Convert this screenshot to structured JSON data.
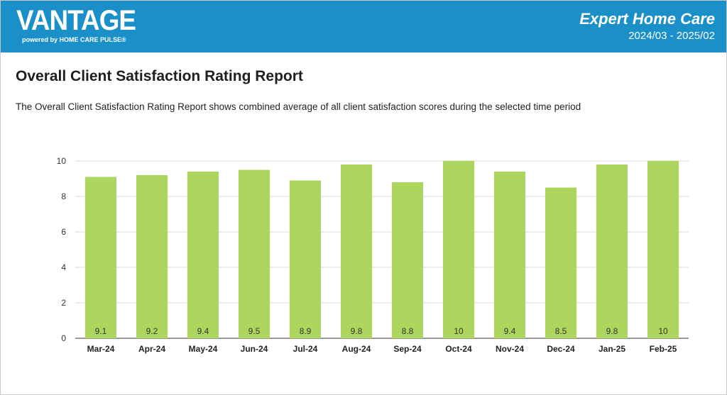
{
  "header": {
    "logo_text": "VANTAGE",
    "logo_sub": "powered by HOME CARE PULSE®",
    "org_name": "Expert Home Care",
    "period": "2024/03 - 2025/02",
    "bg_color": "#1a8fc8"
  },
  "report": {
    "title": "Overall Client Satisfaction Rating Report",
    "description": "The Overall Client Satisfaction Rating Report shows combined average of all client satisfaction scores during the selected time period"
  },
  "chart_data": {
    "type": "bar",
    "title": "",
    "xlabel": "",
    "ylabel": "",
    "categories": [
      "Mar-24",
      "Apr-24",
      "May-24",
      "Jun-24",
      "Jul-24",
      "Aug-24",
      "Sep-24",
      "Oct-24",
      "Nov-24",
      "Dec-24",
      "Jan-25",
      "Feb-25"
    ],
    "values": [
      9.1,
      9.2,
      9.4,
      9.5,
      8.9,
      9.8,
      8.8,
      10,
      9.4,
      8.5,
      9.8,
      10
    ],
    "value_labels": [
      "9.1",
      "9.2",
      "9.4",
      "9.5",
      "8.9",
      "9.8",
      "8.8",
      "10",
      "9.4",
      "8.5",
      "9.8",
      "10"
    ],
    "ylim": [
      0,
      10
    ],
    "yticks": [
      0,
      2,
      4,
      6,
      8,
      10
    ],
    "grid": true,
    "legend": "none",
    "bar_color": "#acd65d"
  }
}
